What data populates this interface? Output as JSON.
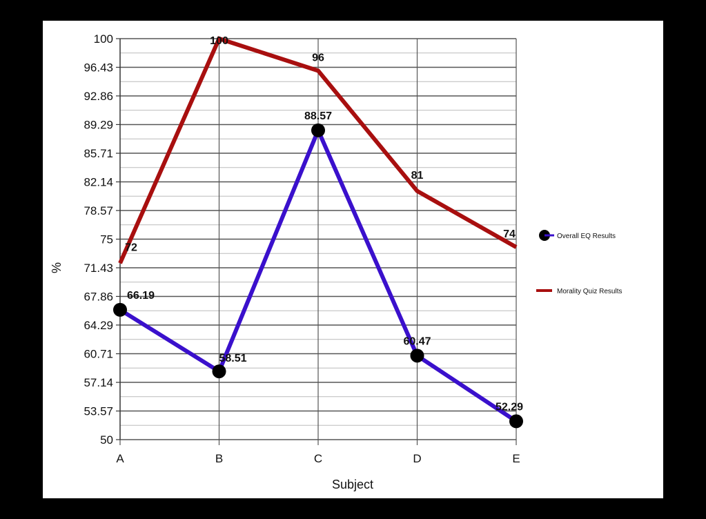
{
  "chart_data": {
    "type": "line",
    "title": "",
    "xlabel": "Subject",
    "ylabel": "%",
    "categories": [
      "A",
      "B",
      "C",
      "D",
      "E"
    ],
    "ylim": [
      50,
      100
    ],
    "yticks": [
      "50",
      "53.57",
      "57.14",
      "60.71",
      "64.29",
      "67.86",
      "71.43",
      "75",
      "78.57",
      "82.14",
      "85.71",
      "89.29",
      "92.86",
      "96.43",
      "100"
    ],
    "grid": true,
    "legend_position": "right",
    "series": [
      {
        "name": "Overall EQ Results",
        "values": [
          66.19,
          58.51,
          88.57,
          60.47,
          52.29
        ],
        "labels": [
          "66.19",
          "58.51",
          "88.57",
          "60.47",
          "52.29"
        ],
        "color": "#3a10cc",
        "marker": "circle"
      },
      {
        "name": "Morality Quiz Results",
        "values": [
          72,
          100,
          96,
          81,
          74
        ],
        "labels": [
          "72",
          "100",
          "96",
          "81",
          "74"
        ],
        "color": "#a80f0f",
        "marker": "none"
      }
    ]
  }
}
